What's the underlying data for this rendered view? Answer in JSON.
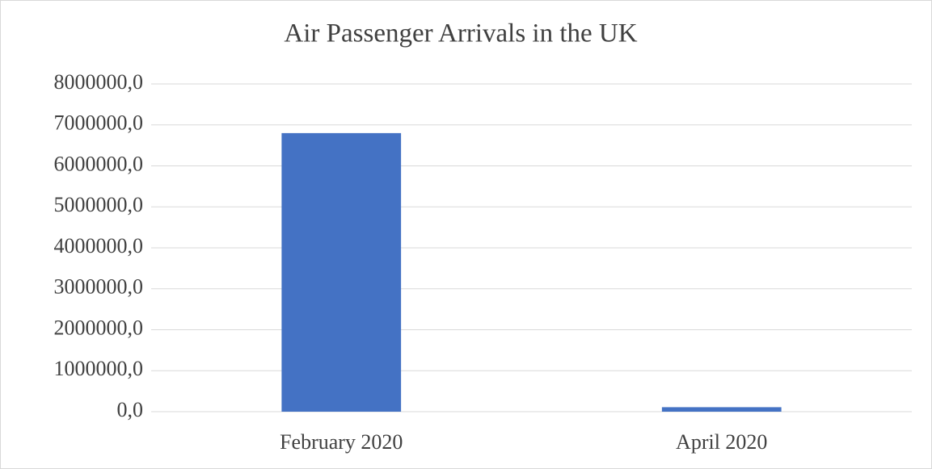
{
  "chart_data": {
    "type": "bar",
    "title": "Air Passenger Arrivals in the UK",
    "categories": [
      "February 2020",
      "April 2020"
    ],
    "values": [
      6800000,
      110000
    ],
    "color": "#4472c4",
    "ylim": [
      0,
      8000000
    ],
    "yticks": [
      {
        "value": 0,
        "label": "0,0"
      },
      {
        "value": 1000000,
        "label": "1000000,0"
      },
      {
        "value": 2000000,
        "label": "2000000,0"
      },
      {
        "value": 3000000,
        "label": "3000000,0"
      },
      {
        "value": 4000000,
        "label": "4000000,0"
      },
      {
        "value": 5000000,
        "label": "5000000,0"
      },
      {
        "value": 6000000,
        "label": "6000000,0"
      },
      {
        "value": 7000000,
        "label": "7000000,0"
      },
      {
        "value": 8000000,
        "label": "8000000,0"
      }
    ],
    "grid": true
  }
}
